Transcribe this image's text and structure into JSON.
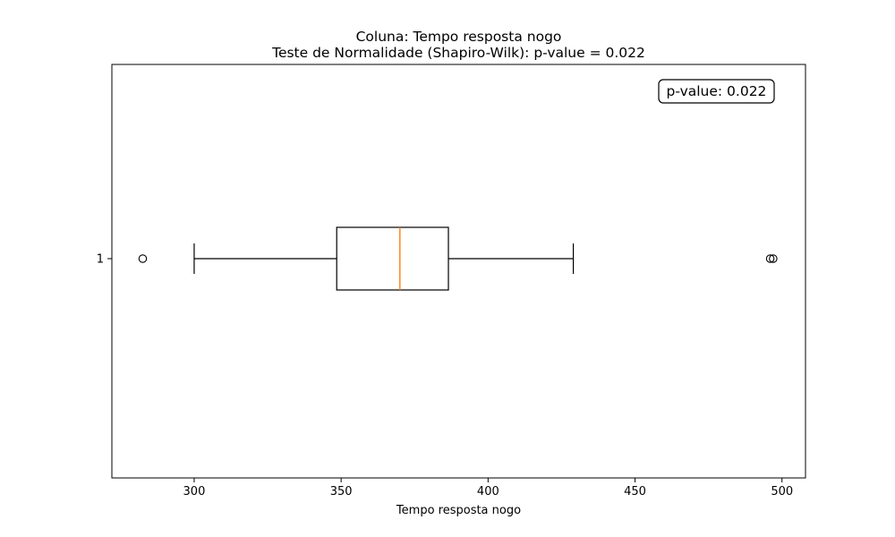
{
  "chart_data": {
    "type": "boxplot",
    "orientation": "horizontal",
    "title_line1": "Coluna: Tempo resposta nogo",
    "title_line2": "Teste de Normalidade (Shapiro-Wilk): p-value = 0.022",
    "xlabel": "Tempo resposta nogo",
    "ylabel": "",
    "xlim": [
      272,
      508
    ],
    "x_ticks": [
      300,
      350,
      400,
      450,
      500
    ],
    "y_ticks": [
      "1"
    ],
    "annotation": "p-value: 0.022",
    "annotation_position": "top-right",
    "grid": false,
    "box": {
      "position": "1",
      "whisker_low": 300,
      "q1": 348.5,
      "median": 370,
      "q3": 386.5,
      "whisker_high": 429,
      "outliers": [
        282.5,
        496,
        497
      ]
    },
    "colors": {
      "box": "#000000",
      "median": "#ff7f0e",
      "background": "#ffffff"
    }
  }
}
